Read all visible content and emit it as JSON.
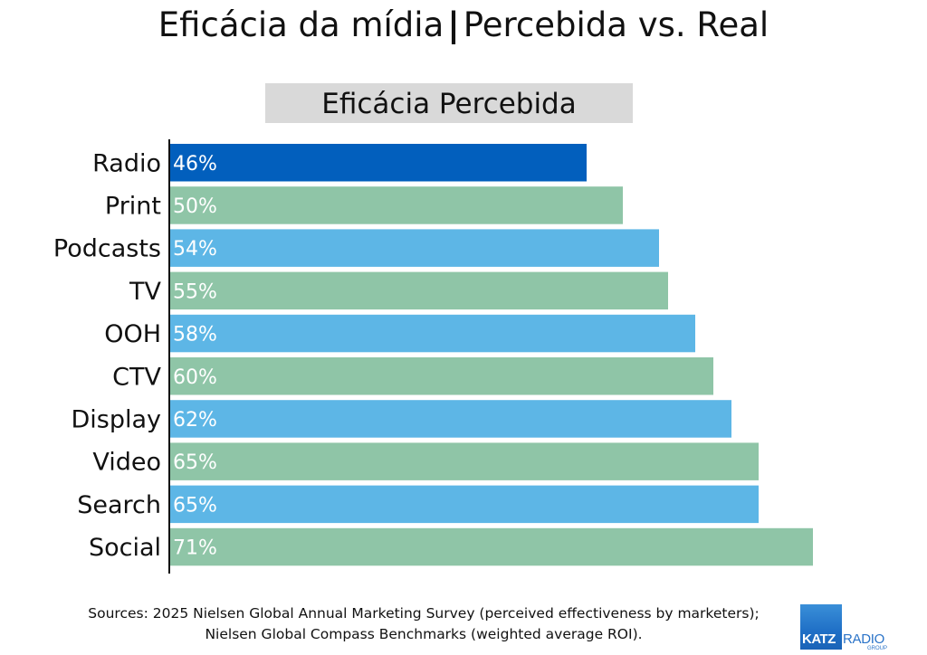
{
  "title": {
    "left": "Eficácia da mídia",
    "separator": "|",
    "right": "Percebida vs. Real"
  },
  "subtitle": "Eficácia Percebida",
  "chart_data": {
    "type": "bar",
    "orientation": "horizontal",
    "title": "Eficácia Percebida",
    "categories": [
      "Radio",
      "Print",
      "Podcasts",
      "TV",
      "OOH",
      "CTV",
      "Display",
      "Video",
      "Search",
      "Social"
    ],
    "values": [
      46,
      50,
      54,
      55,
      58,
      60,
      62,
      65,
      65,
      71
    ],
    "value_labels": [
      "46%",
      "50%",
      "54%",
      "55%",
      "58%",
      "60%",
      "62%",
      "65%",
      "65%",
      "71%"
    ],
    "colors": [
      "#025fbd",
      "#8fc5a7",
      "#5db6e6",
      "#8fc5a7",
      "#5db6e6",
      "#8fc5a7",
      "#5db6e6",
      "#8fc5a7",
      "#5db6e6",
      "#8fc5a7"
    ],
    "xlabel": "",
    "ylabel": "",
    "xlim": [
      0,
      100
    ],
    "grid": false,
    "legend": "none"
  },
  "sources": {
    "line1": "Sources: 2025 Nielsen Global Annual Marketing Survey (perceived effectiveness by marketers);",
    "line2": "Nielsen Global Compass Benchmarks (weighted average ROI)."
  },
  "logo": {
    "katz": "KATZ",
    "radio": "RADIO",
    "group": "GROUP",
    "accent": "#2a73c8"
  }
}
